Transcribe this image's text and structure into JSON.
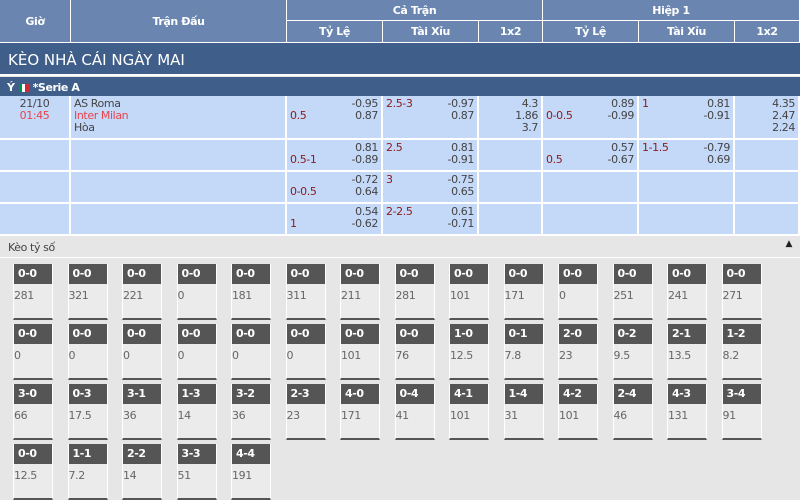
{
  "header": {
    "time": "Giờ",
    "match": "Trận Đấu",
    "full": "Cả Trận",
    "half": "Hiệp 1",
    "sub": [
      "Tỷ Lệ",
      "Tài Xỉu",
      "1x2",
      "Tỷ Lệ",
      "Tài Xỉu",
      "1x2"
    ]
  },
  "title": "KÈO NHÀ CÁI NGÀY MAI",
  "league": {
    "country": "Ý",
    "name": "*Serie A",
    "flag_colors": [
      "#009246",
      "#ffffff",
      "#ce2b37"
    ]
  },
  "match": {
    "date": "21/10",
    "time": "01:45",
    "home": "AS Roma",
    "away": "Inter Milan",
    "draw": "Hòa"
  },
  "odds_rows": [
    [
      {
        "hc": "0.5",
        "hc_line": 2,
        "v": [
          "-0.95",
          "0.87"
        ]
      },
      {
        "hc": "2.5-3",
        "hc_line": 1,
        "v": [
          "-0.97",
          "0.87"
        ]
      },
      {
        "hc": "",
        "v": [
          "4.3",
          "1.86",
          "3.7"
        ]
      },
      {
        "hc": "0-0.5",
        "hc_line": 2,
        "v": [
          "0.89",
          "-0.99"
        ]
      },
      {
        "hc": "1",
        "hc_line": 1,
        "v": [
          "0.81",
          "-0.91"
        ]
      },
      {
        "hc": "",
        "v": [
          "4.35",
          "2.47",
          "2.24"
        ]
      }
    ],
    [
      {
        "hc": "0.5-1",
        "hc_line": 2,
        "v": [
          "0.81",
          "-0.89"
        ]
      },
      {
        "hc": "2.5",
        "hc_line": 1,
        "v": [
          "0.81",
          "-0.91"
        ]
      },
      {
        "hc": "",
        "v": []
      },
      {
        "hc": "0.5",
        "hc_line": 2,
        "v": [
          "0.57",
          "-0.67"
        ]
      },
      {
        "hc": "1-1.5",
        "hc_line": 1,
        "v": [
          "-0.79",
          "0.69"
        ]
      },
      {
        "hc": "",
        "v": []
      }
    ],
    [
      {
        "hc": "0-0.5",
        "hc_line": 2,
        "v": [
          "-0.72",
          "0.64"
        ]
      },
      {
        "hc": "3",
        "hc_line": 1,
        "v": [
          "-0.75",
          "0.65"
        ]
      },
      {
        "hc": "",
        "v": []
      },
      {
        "hc": "",
        "v": []
      },
      {
        "hc": "",
        "v": []
      },
      {
        "hc": "",
        "v": []
      }
    ],
    [
      {
        "hc": "1",
        "hc_line": 2,
        "v": [
          "0.54",
          "-0.62"
        ]
      },
      {
        "hc": "2-2.5",
        "hc_line": 1,
        "v": [
          "0.61",
          "-0.71"
        ]
      },
      {
        "hc": "",
        "v": []
      },
      {
        "hc": "",
        "v": []
      },
      {
        "hc": "",
        "v": []
      },
      {
        "hc": "",
        "v": []
      }
    ]
  ],
  "correct_score": {
    "label": "Kèo tỷ số",
    "items": [
      [
        "0-0",
        "281"
      ],
      [
        "0-0",
        "321"
      ],
      [
        "0-0",
        "221"
      ],
      [
        "0-0",
        "0"
      ],
      [
        "0-0",
        "181"
      ],
      [
        "0-0",
        "311"
      ],
      [
        "0-0",
        "211"
      ],
      [
        "0-0",
        "281"
      ],
      [
        "0-0",
        "101"
      ],
      [
        "0-0",
        "171"
      ],
      [
        "0-0",
        "0"
      ],
      [
        "0-0",
        "251"
      ],
      [
        "0-0",
        "241"
      ],
      [
        "0-0",
        "271"
      ],
      [
        "0-0",
        "0"
      ],
      [
        "0-0",
        "0"
      ],
      [
        "0-0",
        "0"
      ],
      [
        "0-0",
        "0"
      ],
      [
        "0-0",
        "0"
      ],
      [
        "0-0",
        "0"
      ],
      [
        "0-0",
        "101"
      ],
      [
        "0-0",
        "76"
      ],
      [
        "1-0",
        "12.5"
      ],
      [
        "0-1",
        "7.8"
      ],
      [
        "2-0",
        "23"
      ],
      [
        "0-2",
        "9.5"
      ],
      [
        "2-1",
        "13.5"
      ],
      [
        "1-2",
        "8.2"
      ],
      [
        "3-0",
        "66"
      ],
      [
        "0-3",
        "17.5"
      ],
      [
        "3-1",
        "36"
      ],
      [
        "1-3",
        "14"
      ],
      [
        "3-2",
        "36"
      ],
      [
        "2-3",
        "23"
      ],
      [
        "4-0",
        "171"
      ],
      [
        "0-4",
        "41"
      ],
      [
        "4-1",
        "101"
      ],
      [
        "1-4",
        "31"
      ],
      [
        "4-2",
        "101"
      ],
      [
        "2-4",
        "46"
      ],
      [
        "4-3",
        "131"
      ],
      [
        "3-4",
        "91"
      ],
      [
        "0-0",
        "12.5"
      ],
      [
        "1-1",
        "7.2"
      ],
      [
        "2-2",
        "14"
      ],
      [
        "3-3",
        "51"
      ],
      [
        "4-4",
        "191"
      ]
    ]
  }
}
